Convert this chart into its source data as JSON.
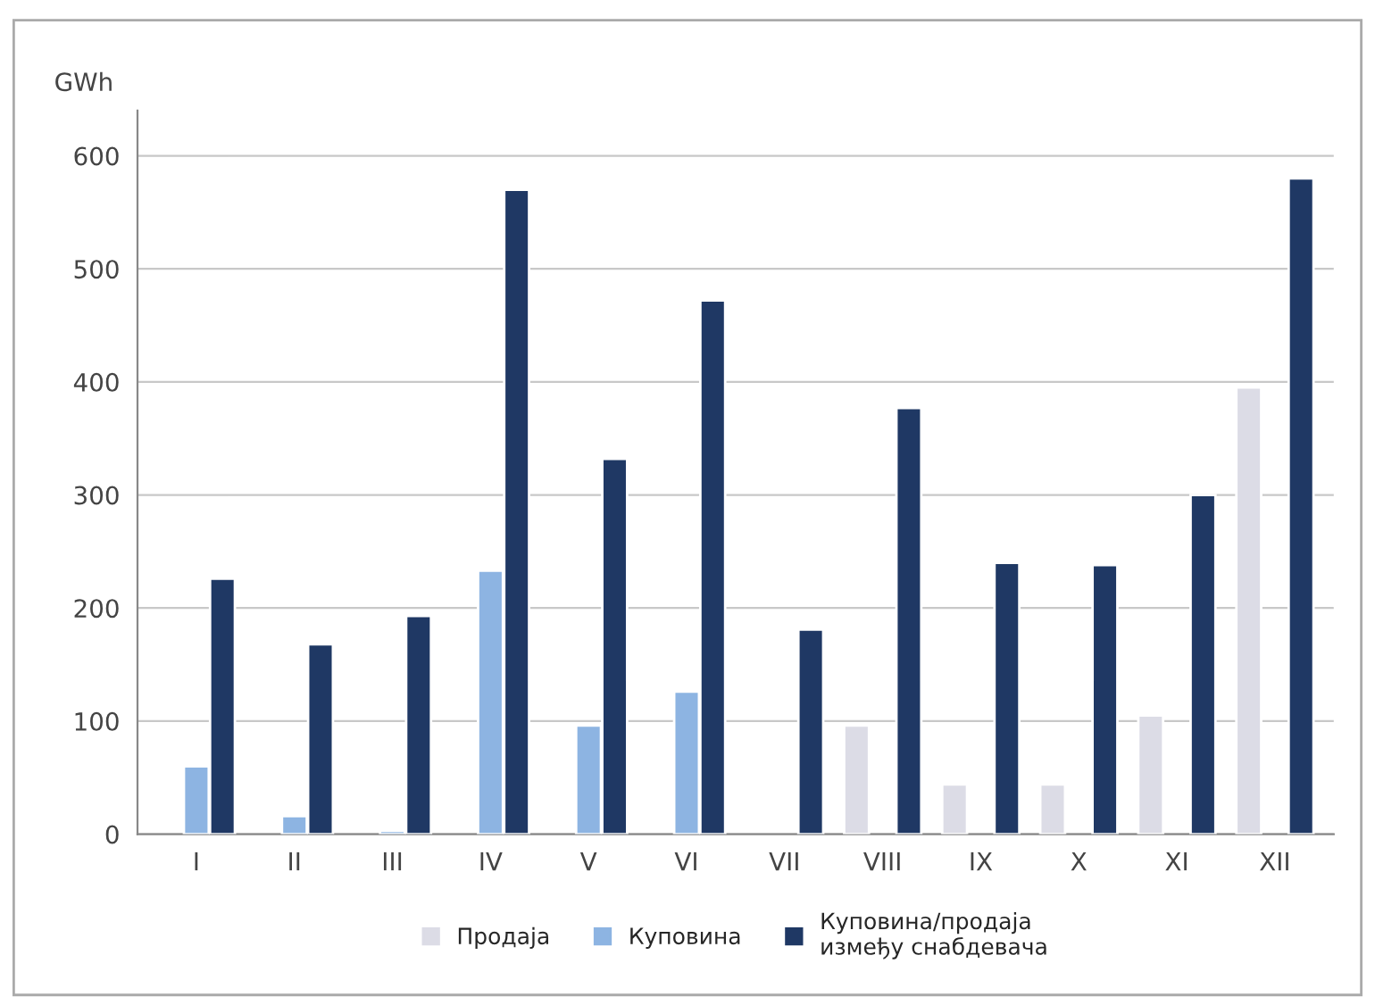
{
  "chart_data": {
    "type": "bar",
    "ylabel": "GWh",
    "categories": [
      "I",
      "II",
      "III",
      "IV",
      "V",
      "VI",
      "VII",
      "VIII",
      "IX",
      "X",
      "XI",
      "XII"
    ],
    "series": [
      {
        "name": "Продаја",
        "color": "#dcdce6",
        "values": [
          null,
          null,
          null,
          null,
          null,
          null,
          null,
          96,
          44,
          44,
          105,
          395
        ]
      },
      {
        "name": "Куповина",
        "color": "#8db4e2",
        "values": [
          60,
          16,
          3,
          233,
          96,
          126,
          null,
          null,
          null,
          null,
          null,
          null
        ]
      },
      {
        "name": "Куповина/продаја између снабдевача",
        "color": "#1f3864",
        "values": [
          226,
          168,
          193,
          570,
          332,
          472,
          181,
          377,
          240,
          238,
          300,
          580
        ]
      }
    ],
    "ylim": [
      0,
      640
    ],
    "yticks": [
      0,
      100,
      200,
      300,
      400,
      500,
      600
    ],
    "grid": "y",
    "legend": "bottom"
  }
}
